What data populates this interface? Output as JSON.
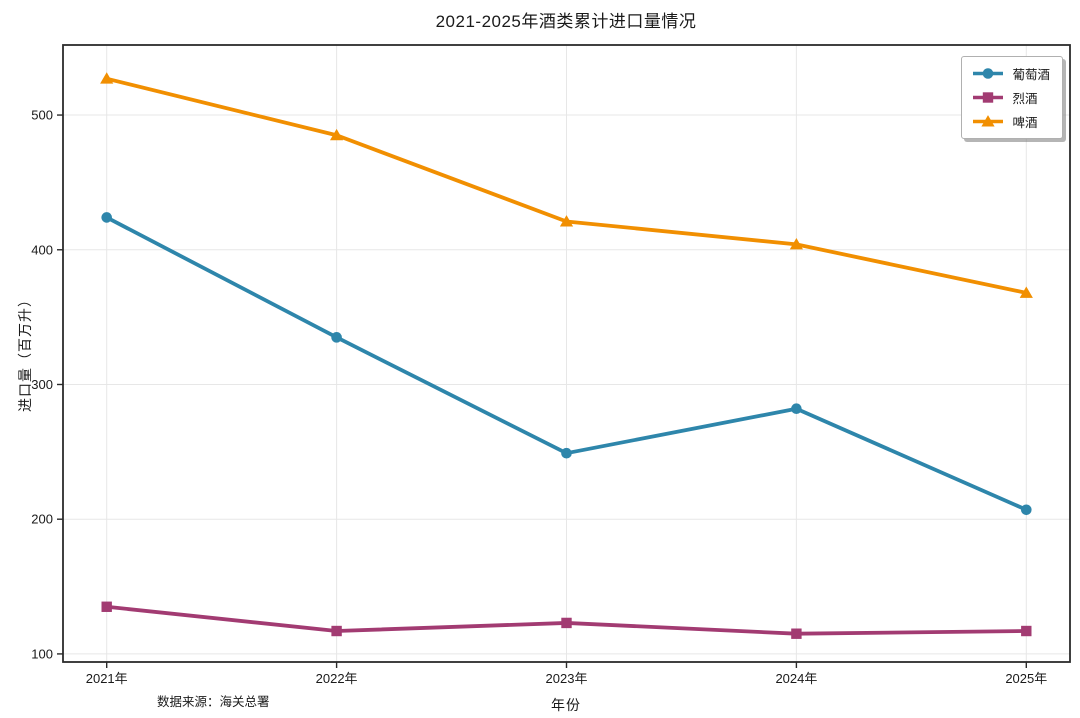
{
  "figure": {
    "title": "2021-2025年酒类累计进口量情况",
    "source_note": "数据来源：海关总署"
  },
  "chart_data": {
    "type": "line",
    "title": "2021-2025年酒类累计进口量情况",
    "xlabel": "年份",
    "ylabel": "进口量（百万升）",
    "categories": [
      "2021年",
      "2022年",
      "2023年",
      "2024年",
      "2025年"
    ],
    "series": [
      {
        "id": "wine",
        "name": "葡萄酒",
        "color": "#2E86AB",
        "marker": "circle",
        "values": [
          424,
          335,
          249,
          282,
          207
        ]
      },
      {
        "id": "spirits",
        "name": "烈酒",
        "color": "#A23B72",
        "marker": "square",
        "values": [
          135,
          117,
          123,
          115,
          117
        ]
      },
      {
        "id": "beer",
        "name": "啤酒",
        "color": "#F18F01",
        "marker": "triangle-up",
        "values": [
          527,
          485,
          421,
          404,
          368
        ]
      }
    ],
    "yticks": [
      100,
      200,
      300,
      400,
      500
    ],
    "ylim": [
      94,
      552
    ],
    "grid": true,
    "legend_position": "upper right",
    "source_note": "数据来源：海关总署"
  },
  "colors": {
    "grid": "#e7e7e7",
    "spine": "#2b2b2b",
    "tick_text": "#1a1a1a"
  }
}
